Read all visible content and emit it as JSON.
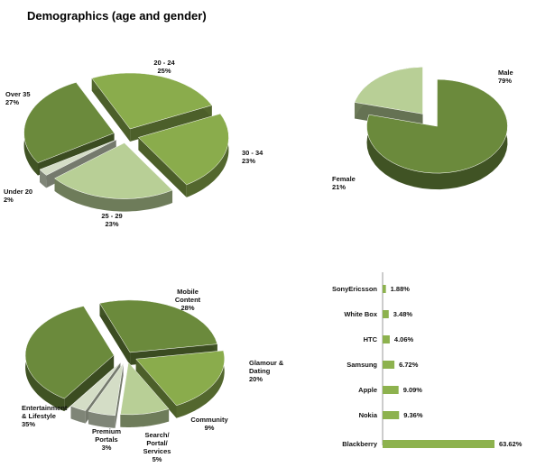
{
  "page_title": "Demographics (age and gender)",
  "colors": {
    "olive_dark": "#6b8a3c",
    "olive_mid": "#8aac4c",
    "olive_light": "#b8cf96",
    "gray_light": "#d4ddc6",
    "side_dark": "#3b4f1c",
    "bar": "#8db24e"
  },
  "chart_data": [
    {
      "type": "pie",
      "title": "",
      "slices": [
        {
          "label": "20 - 24",
          "value": 25
        },
        {
          "label": "30 - 34",
          "value": 23
        },
        {
          "label": "25 - 29",
          "value": 23
        },
        {
          "label": "Under 20",
          "value": 2
        },
        {
          "label": "Over 35",
          "value": 27
        }
      ],
      "value_labels": [
        "25%",
        "23%",
        "23%",
        "2%",
        "27%"
      ]
    },
    {
      "type": "pie",
      "title": "",
      "slices": [
        {
          "label": "Male",
          "value": 79
        },
        {
          "label": "Female",
          "value": 21
        }
      ],
      "value_labels": [
        "79%",
        "21%"
      ]
    },
    {
      "type": "pie",
      "title": "",
      "slices": [
        {
          "label": "Mobile Content",
          "value": 28
        },
        {
          "label": "Glamour & Dating",
          "value": 20
        },
        {
          "label": "Community",
          "value": 9
        },
        {
          "label": "Search/ Portal/ Services",
          "value": 5
        },
        {
          "label": "Premium Portals",
          "value": 3
        },
        {
          "label": "Entertainment & Lifestyle",
          "value": 35
        }
      ],
      "value_labels": [
        "28%",
        "20%",
        "9%",
        "5%",
        "3%",
        "35%"
      ]
    },
    {
      "type": "bar",
      "orientation": "horizontal",
      "categories": [
        "SonyEricsson",
        "White Box",
        "HTC",
        "Samsung",
        "Apple",
        "Nokia",
        "Blackberry"
      ],
      "values": [
        1.88,
        3.48,
        4.06,
        6.72,
        9.09,
        9.36,
        63.62
      ],
      "value_labels": [
        "1.88%",
        "3.48%",
        "4.06%",
        "6.72%",
        "9.09%",
        "9.36%",
        "63.62%"
      ]
    }
  ],
  "pie_label_lines": {
    "age": [
      [
        "20 - 24",
        "25%"
      ],
      [
        "30 - 34",
        "23%"
      ],
      [
        "25 - 29",
        "23%"
      ],
      [
        "Under 20",
        "2%"
      ],
      [
        "Over 35",
        "27%"
      ]
    ],
    "gender": [
      [
        "Male",
        "79%"
      ],
      [
        "Female",
        "21%"
      ]
    ],
    "category": [
      [
        "Mobile",
        "Content",
        "28%"
      ],
      [
        "Glamour &",
        "Dating",
        "20%"
      ],
      [
        "Community",
        "9%"
      ],
      [
        "Search/",
        "Portal/",
        "Services",
        "5%"
      ],
      [
        "Premium",
        "Portals",
        "3%"
      ],
      [
        "Entertainment",
        "& Lifestyle",
        "35%"
      ]
    ]
  }
}
